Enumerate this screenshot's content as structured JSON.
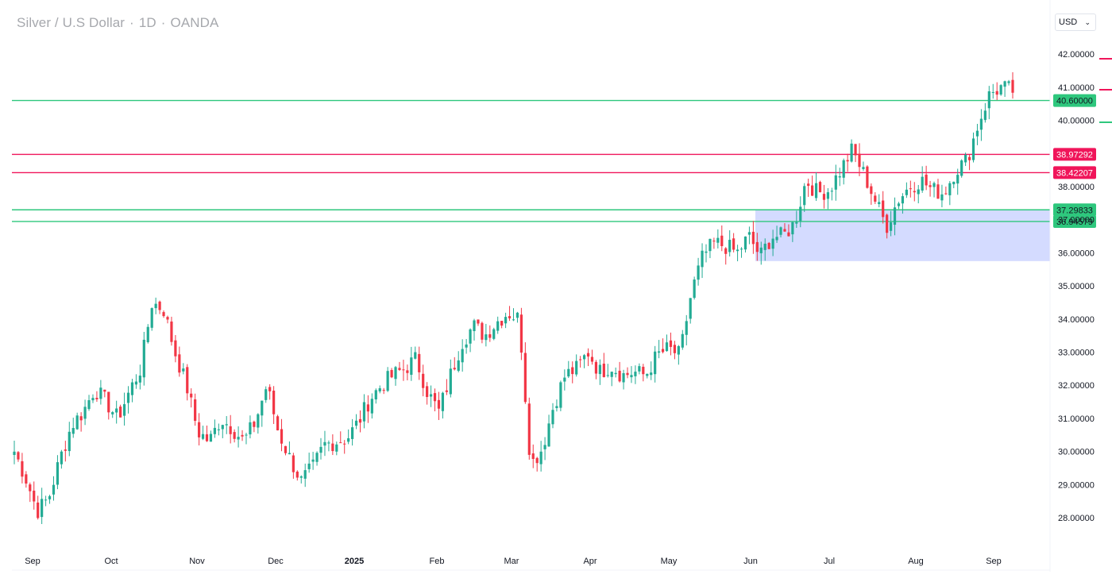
{
  "header": {
    "symbol": "Silver / U.S Dollar",
    "interval": "1D",
    "exchange": "OANDA",
    "separator": "·"
  },
  "currency_select": {
    "value": "USD"
  },
  "chart_data": {
    "type": "candlestick",
    "title": "Silver / U.S Dollar · 1D · OANDA",
    "ylim": [
      27.2,
      42.5
    ],
    "y_ticks": [
      28,
      29,
      30,
      31,
      32,
      33,
      34,
      35,
      36,
      37,
      38,
      40,
      41,
      42
    ],
    "y_tick_labels": [
      "28.00000",
      "29.00000",
      "30.00000",
      "31.00000",
      "32.00000",
      "33.00000",
      "34.00000",
      "35.00000",
      "36.00000",
      "37.00000",
      "38.00000",
      "40.00000",
      "41.00000",
      "42.00000"
    ],
    "x_tick_labels": [
      "Sep",
      "Oct",
      "Nov",
      "Dec",
      "2025",
      "Feb",
      "Mar",
      "Apr",
      "May",
      "Jun",
      "Jul",
      "Aug",
      "Sep"
    ],
    "colors": {
      "up": "#22ab94",
      "down": "#f23645",
      "up_line": "#2ec77d",
      "down_line": "#f0155a",
      "zone": "#c9d2ff"
    },
    "horizontal_levels": [
      {
        "price": 40.6,
        "label": "40.60000",
        "kind": "support"
      },
      {
        "price": 38.97292,
        "label": "38.97292",
        "kind": "resistance"
      },
      {
        "price": 38.42207,
        "label": "38.42207",
        "kind": "resistance"
      },
      {
        "price": 37.29833,
        "label": "37.29833",
        "kind": "support"
      },
      {
        "price": 36.94579,
        "label": "36.94579",
        "kind": "support"
      }
    ],
    "zone": {
      "price_top": 37.3,
      "price_bottom": 35.75,
      "start": "Jun 2025",
      "end": "latest"
    },
    "close_points": [
      [
        "Sep",
        30.0
      ],
      [
        "",
        29.2
      ],
      [
        "",
        28.2
      ],
      [
        "",
        28.6
      ],
      [
        "",
        29.8
      ],
      [
        "",
        30.8
      ],
      [
        "",
        31.2
      ],
      [
        "Oct",
        31.9
      ],
      [
        "",
        31.5
      ],
      [
        "",
        31.0
      ],
      [
        "",
        31.8
      ],
      [
        "",
        32.5
      ],
      [
        "",
        34.5
      ],
      [
        "Nov",
        34.3
      ],
      [
        "",
        33.0
      ],
      [
        "",
        32.0
      ],
      [
        "",
        30.6
      ],
      [
        "",
        30.3
      ],
      [
        "",
        31.0
      ],
      [
        "Dec",
        30.7
      ],
      [
        "",
        30.3
      ],
      [
        "",
        30.9
      ],
      [
        "",
        32.0
      ],
      [
        "",
        30.6
      ],
      [
        "",
        29.8
      ],
      [
        "",
        29.1
      ],
      [
        "2025",
        29.5
      ],
      [
        "",
        30.2
      ],
      [
        "",
        30.3
      ],
      [
        "",
        30.4
      ],
      [
        "",
        30.9
      ],
      [
        "Feb",
        31.6
      ],
      [
        "",
        32.0
      ],
      [
        "",
        32.3
      ],
      [
        "",
        32.5
      ],
      [
        "",
        32.8
      ],
      [
        "Mar",
        31.8
      ],
      [
        "",
        31.2
      ],
      [
        "",
        32.3
      ],
      [
        "",
        33.3
      ],
      [
        "",
        33.8
      ],
      [
        "",
        33.5
      ],
      [
        "",
        33.9
      ],
      [
        "",
        34.2
      ],
      [
        "Apr",
        34.0
      ],
      [
        "",
        29.6
      ],
      [
        "",
        30.1
      ],
      [
        "",
        31.4
      ],
      [
        "",
        32.3
      ],
      [
        "",
        32.5
      ],
      [
        "",
        33.0
      ],
      [
        "May",
        32.4
      ],
      [
        "",
        32.6
      ],
      [
        "",
        32.3
      ],
      [
        "",
        32.4
      ],
      [
        "",
        32.3
      ],
      [
        "",
        32.9
      ],
      [
        "",
        33.1
      ],
      [
        "",
        32.9
      ],
      [
        "Jun",
        34.8
      ],
      [
        "",
        35.9
      ],
      [
        "",
        36.3
      ],
      [
        "",
        36.2
      ],
      [
        "",
        36.0
      ],
      [
        "",
        36.5
      ],
      [
        "",
        35.9
      ],
      [
        "",
        36.5
      ],
      [
        "Jul",
        36.5
      ],
      [
        "",
        36.9
      ],
      [
        "",
        38.2
      ],
      [
        "",
        37.8
      ],
      [
        "",
        37.9
      ],
      [
        "",
        38.5
      ],
      [
        "",
        39.1
      ],
      [
        "",
        38.4
      ],
      [
        "Aug",
        37.6
      ],
      [
        "",
        36.8
      ],
      [
        "",
        37.6
      ],
      [
        "",
        38.0
      ],
      [
        "",
        38.2
      ],
      [
        "",
        37.9
      ],
      [
        "",
        37.8
      ],
      [
        "",
        38.5
      ],
      [
        "",
        38.8
      ],
      [
        "Sep",
        39.9
      ],
      [
        "",
        40.8
      ],
      [
        "",
        41.0
      ],
      [
        "",
        40.9
      ]
    ]
  }
}
